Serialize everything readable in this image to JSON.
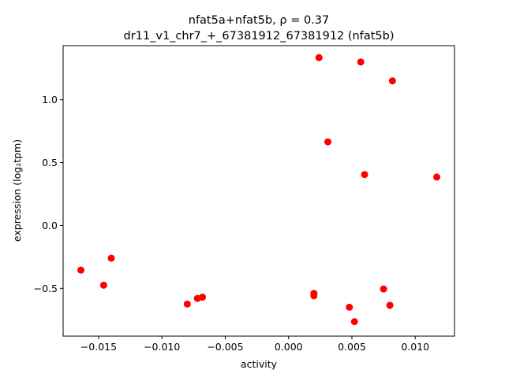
{
  "chart_data": {
    "type": "scatter",
    "title_line1": "nfat5a+nfat5b, ρ = 0.37",
    "title_line2": "dr11_v1_chr7_+_67381912_67381912 (nfat5b)",
    "xlabel": "activity",
    "ylabel": "expression (log₂tpm)",
    "xlim": [
      -0.0178,
      0.0131
    ],
    "ylim": [
      -0.88,
      1.43
    ],
    "xticks": [
      {
        "value": -0.015,
        "label": "−0.015"
      },
      {
        "value": -0.01,
        "label": "−0.010"
      },
      {
        "value": -0.005,
        "label": "−0.005"
      },
      {
        "value": 0.0,
        "label": "0.000"
      },
      {
        "value": 0.005,
        "label": "0.005"
      },
      {
        "value": 0.01,
        "label": "0.010"
      }
    ],
    "yticks": [
      {
        "value": -0.5,
        "label": "−0.5"
      },
      {
        "value": 0.0,
        "label": "0.0"
      },
      {
        "value": 0.5,
        "label": "0.5"
      },
      {
        "value": 1.0,
        "label": "1.0"
      }
    ],
    "point_color": "#ff0000",
    "grid": false,
    "points": [
      {
        "x": -0.0164,
        "y": -0.355
      },
      {
        "x": -0.0146,
        "y": -0.475
      },
      {
        "x": -0.014,
        "y": -0.26
      },
      {
        "x": -0.008,
        "y": -0.625
      },
      {
        "x": -0.0072,
        "y": -0.58
      },
      {
        "x": -0.0068,
        "y": -0.57
      },
      {
        "x": 0.002,
        "y": -0.54
      },
      {
        "x": 0.002,
        "y": -0.56
      },
      {
        "x": 0.0024,
        "y": 1.335
      },
      {
        "x": 0.0031,
        "y": 0.665
      },
      {
        "x": 0.0048,
        "y": -0.65
      },
      {
        "x": 0.0052,
        "y": -0.765
      },
      {
        "x": 0.0057,
        "y": 1.3
      },
      {
        "x": 0.006,
        "y": 0.405
      },
      {
        "x": 0.0075,
        "y": -0.505
      },
      {
        "x": 0.008,
        "y": -0.635
      },
      {
        "x": 0.0082,
        "y": 1.15
      },
      {
        "x": 0.0117,
        "y": 0.385
      }
    ]
  }
}
